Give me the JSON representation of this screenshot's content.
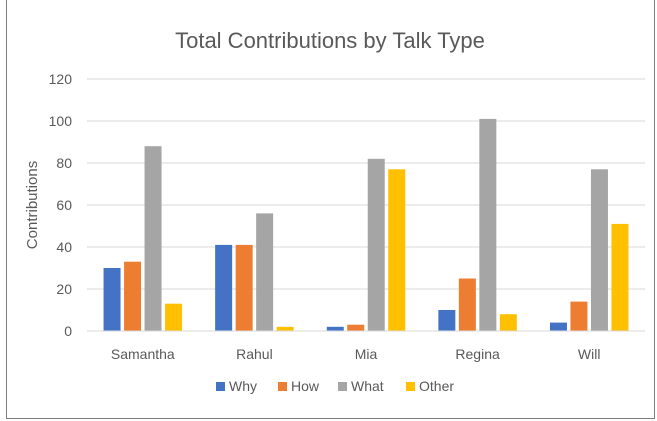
{
  "chart_data": {
    "type": "bar",
    "title": "Total Contributions by Talk Type",
    "xlabel": "",
    "ylabel": "Contributions",
    "ylim": [
      0,
      120
    ],
    "yticks": [
      0,
      20,
      40,
      60,
      80,
      100,
      120
    ],
    "grid": true,
    "legend_position": "bottom",
    "categories": [
      "Samantha",
      "Rahul",
      "Mia",
      "Regina",
      "Will"
    ],
    "series": [
      {
        "name": "Why",
        "color": "#4472C4",
        "values": [
          30,
          41,
          2,
          10,
          4
        ]
      },
      {
        "name": "How",
        "color": "#ED7D31",
        "values": [
          33,
          41,
          3,
          25,
          14
        ]
      },
      {
        "name": "What",
        "color": "#A5A5A5",
        "values": [
          88,
          56,
          82,
          101,
          77
        ]
      },
      {
        "name": "Other",
        "color": "#FFC000",
        "values": [
          13,
          2,
          77,
          8,
          51
        ]
      }
    ]
  }
}
